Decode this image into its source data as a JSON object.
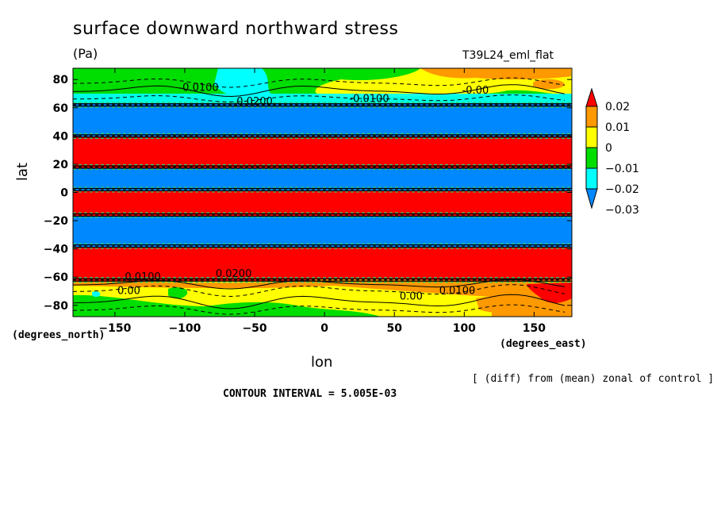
{
  "chart_data": {
    "type": "heatmap",
    "title": "surface downward northward stress",
    "units": "(Pa)",
    "run_label": "T39L24_eml_flat",
    "xlabel": "lon",
    "ylabel": "lat",
    "x_unit_label": "(degrees_north)",
    "x_unit_label_2": "(degrees_east)",
    "xlim": [
      -180,
      177
    ],
    "ylim": [
      -88,
      88
    ],
    "x_ticks": [
      -150,
      -100,
      -50,
      0,
      50,
      100,
      150
    ],
    "y_ticks": [
      80,
      60,
      40,
      20,
      0,
      -20,
      -40,
      -60,
      -80
    ],
    "note": "[ (diff) from (mean) zonal of control ]",
    "contour_interval_text": "CONTOUR INTERVAL = 5.005E-03",
    "colorbar": {
      "labels": [
        "0.02",
        "0.01",
        "0",
        "−0.01",
        "−0.02",
        "−0.03"
      ],
      "colors": [
        "#ff0000",
        "#ff9900",
        "#ffff00",
        "#00dd00",
        "#00ffff",
        "#0088ff"
      ]
    },
    "contour_labels": [
      {
        "text": "-0.0100",
        "lon": -90,
        "lat": 72
      },
      {
        "text": "0.0200",
        "lon": -50,
        "lat": 62
      },
      {
        "text": "-0.0100",
        "lon": 32,
        "lat": 64
      },
      {
        "text": "-0.00",
        "lon": 108,
        "lat": 70
      },
      {
        "text": "0.0100",
        "lon": -130,
        "lat": -62
      },
      {
        "text": "0.00",
        "lon": -140,
        "lat": -72
      },
      {
        "text": "0.0200",
        "lon": -65,
        "lat": -60
      },
      {
        "text": "0.00",
        "lon": 62,
        "lat": -76
      },
      {
        "text": "0.0100",
        "lon": 95,
        "lat": -72
      }
    ],
    "bands": [
      {
        "lat_min": 66,
        "lat_max": 88,
        "value_label": "mixed 0 to -0.02"
      },
      {
        "lat_min": 40,
        "lat_max": 62,
        "value_label": "-0.03"
      },
      {
        "lat_min": 18,
        "lat_max": 40,
        "value_label": "0.02"
      },
      {
        "lat_min": 2,
        "lat_max": 18,
        "value_label": "-0.03"
      },
      {
        "lat_min": -16,
        "lat_max": 2,
        "value_label": "0.02"
      },
      {
        "lat_min": -38,
        "lat_max": -16,
        "value_label": "-0.03"
      },
      {
        "lat_min": -62,
        "lat_max": -38,
        "value_label": "0.02"
      },
      {
        "lat_min": -88,
        "lat_max": -62,
        "value_label": "mixed 0 to 0.01"
      }
    ]
  }
}
